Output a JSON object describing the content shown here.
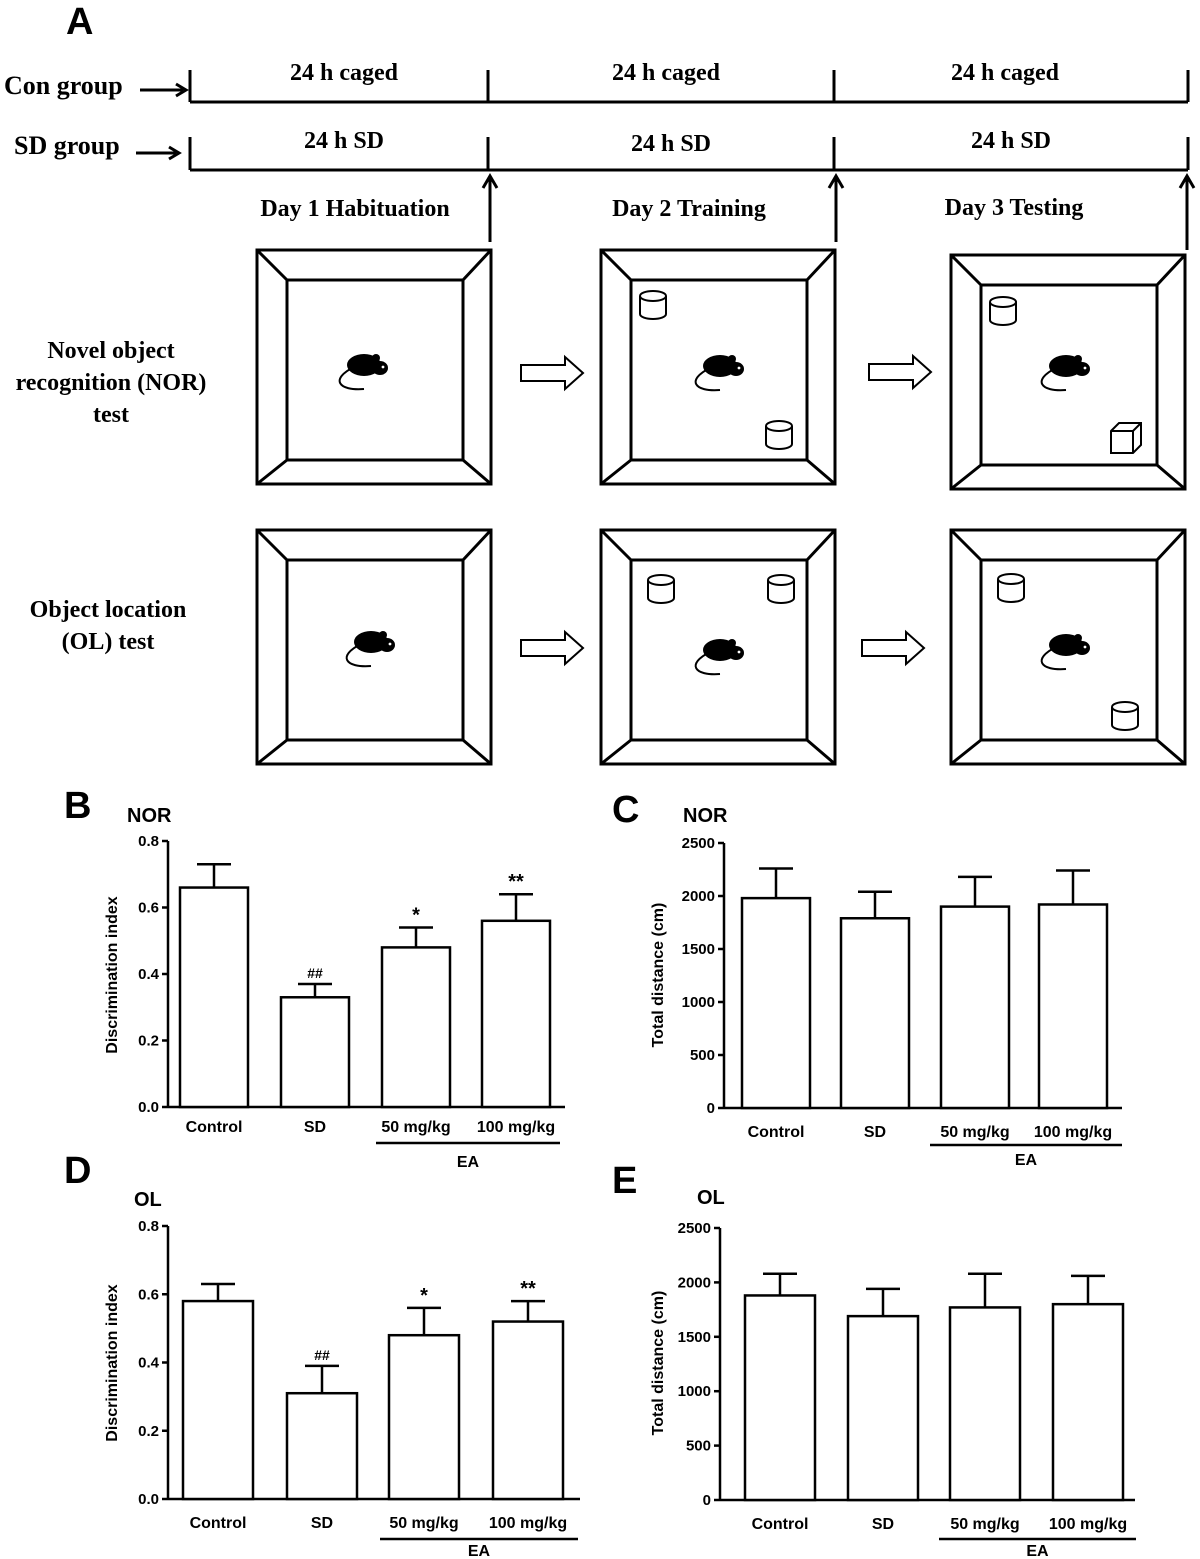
{
  "panel_letters": [
    "A",
    "B",
    "C",
    "D",
    "E"
  ],
  "schedule": {
    "con_group_label": "Con group",
    "sd_group_label": "SD group",
    "con_segments": [
      "24 h caged",
      "24 h caged",
      "24 h caged"
    ],
    "sd_segments": [
      "24 h SD",
      "24 h SD",
      "24 h SD"
    ],
    "days": [
      "Day 1 Habituation",
      "Day 2 Training",
      "Day 3 Testing"
    ]
  },
  "tests": {
    "nor_label": [
      "Novel object",
      "recognition (NOR)",
      "test"
    ],
    "ol_label": [
      "Object location",
      "(OL) test"
    ]
  },
  "icons": [
    "mouse-icon",
    "cylinder-object-icon",
    "cube-object-icon",
    "hollow-arrow-icon"
  ],
  "colors": {
    "ink": "#000000",
    "bar_fill": "#ffffff",
    "background": "#ffffff"
  },
  "chart_data": [
    {
      "panel": "B",
      "type": "bar",
      "title": "NOR",
      "ylabel": "Discrimination index",
      "ylim": [
        0,
        0.8
      ],
      "yticks": [
        "0.0",
        "0.2",
        "0.4",
        "0.6",
        "0.8"
      ],
      "categories": [
        "Control",
        "SD",
        "50 mg/kg",
        "100 mg/kg"
      ],
      "group_label": "EA",
      "values": [
        0.66,
        0.33,
        0.48,
        0.56
      ],
      "errors": [
        0.07,
        0.04,
        0.06,
        0.08
      ],
      "annotations": [
        "",
        "##",
        "*",
        "**"
      ]
    },
    {
      "panel": "C",
      "type": "bar",
      "title": "NOR",
      "ylabel": "Total distance (cm)",
      "ylim": [
        0,
        2500
      ],
      "yticks": [
        "0",
        "500",
        "1000",
        "1500",
        "2000",
        "2500"
      ],
      "categories": [
        "Control",
        "SD",
        "50 mg/kg",
        "100 mg/kg"
      ],
      "group_label": "EA",
      "values": [
        1980,
        1790,
        1900,
        1920
      ],
      "errors": [
        280,
        250,
        280,
        320
      ],
      "annotations": [
        "",
        "",
        "",
        ""
      ]
    },
    {
      "panel": "D",
      "type": "bar",
      "title": "OL",
      "ylabel": "Discrimination index",
      "ylim": [
        0,
        0.8
      ],
      "yticks": [
        "0.0",
        "0.2",
        "0.4",
        "0.6",
        "0.8"
      ],
      "categories": [
        "Control",
        "SD",
        "50 mg/kg",
        "100 mg/kg"
      ],
      "group_label": "EA",
      "values": [
        0.58,
        0.31,
        0.48,
        0.52
      ],
      "errors": [
        0.05,
        0.08,
        0.08,
        0.06
      ],
      "annotations": [
        "",
        "##",
        "*",
        "**"
      ]
    },
    {
      "panel": "E",
      "type": "bar",
      "title": "OL",
      "ylabel": "Total distance (cm)",
      "ylim": [
        0,
        2500
      ],
      "yticks": [
        "0",
        "500",
        "1000",
        "1500",
        "2000",
        "2500"
      ],
      "categories": [
        "Control",
        "SD",
        "50 mg/kg",
        "100 mg/kg"
      ],
      "group_label": "EA",
      "values": [
        1880,
        1690,
        1770,
        1800
      ],
      "errors": [
        200,
        250,
        310,
        260
      ],
      "annotations": [
        "",
        "",
        "",
        ""
      ]
    }
  ]
}
